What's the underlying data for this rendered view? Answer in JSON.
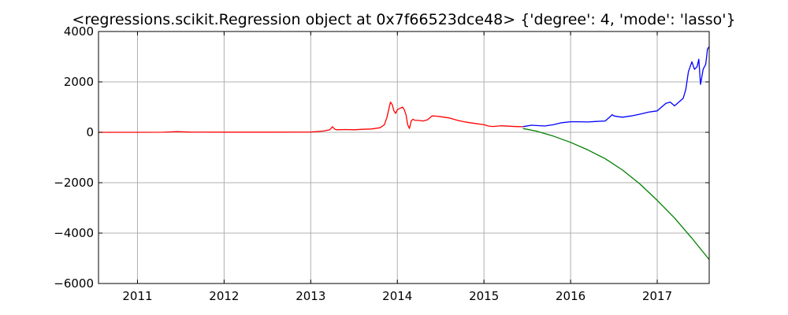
{
  "chart_data": {
    "type": "line",
    "title": "<regressions.scikit.Regression object at 0x7f66523dce48> {'degree': 4, 'mode': 'lasso'}",
    "xlabel": "",
    "ylabel": "",
    "xlim": [
      2010.55,
      2017.6
    ],
    "ylim": [
      -6000,
      4000
    ],
    "grid": true,
    "x_ticks": [
      2011,
      2012,
      2013,
      2014,
      2015,
      2016,
      2017
    ],
    "x_tick_labels": [
      "2011",
      "2012",
      "2013",
      "2014",
      "2015",
      "2016",
      "2017"
    ],
    "y_ticks": [
      4000,
      2000,
      0,
      -2000,
      -4000,
      -6000
    ],
    "y_tick_labels": [
      "4000",
      "2000",
      "0",
      "−2000",
      "−4000",
      "−6000"
    ],
    "series": [
      {
        "color": "#ff0000",
        "x": [
          2010.55,
          2011.0,
          2011.3,
          2011.45,
          2011.6,
          2012.0,
          2012.5,
          2013.0,
          2013.15,
          2013.22,
          2013.25,
          2013.28,
          2013.3,
          2013.4,
          2013.5,
          2013.6,
          2013.7,
          2013.8,
          2013.85,
          2013.88,
          2013.9,
          2013.92,
          2013.94,
          2013.96,
          2013.98,
          2014.0,
          2014.03,
          2014.06,
          2014.08,
          2014.1,
          2014.12,
          2014.14,
          2014.16,
          2014.18,
          2014.2,
          2014.25,
          2014.3,
          2014.35,
          2014.4,
          2014.45,
          2014.5,
          2014.6,
          2014.7,
          2014.8,
          2014.9,
          2015.0,
          2015.05,
          2015.1,
          2015.2,
          2015.3,
          2015.4,
          2015.45
        ],
        "y": [
          0,
          0,
          2,
          25,
          10,
          5,
          5,
          10,
          50,
          100,
          220,
          120,
          100,
          110,
          100,
          120,
          130,
          180,
          300,
          600,
          900,
          1200,
          1100,
          850,
          750,
          900,
          950,
          1000,
          900,
          700,
          300,
          150,
          450,
          520,
          480,
          470,
          450,
          500,
          650,
          640,
          620,
          570,
          470,
          400,
          350,
          300,
          250,
          230,
          260,
          240,
          225,
          225
        ]
      },
      {
        "color": "#0000ff",
        "x": [
          2015.45,
          2015.55,
          2015.7,
          2015.8,
          2015.9,
          2016.0,
          2016.1,
          2016.2,
          2016.3,
          2016.4,
          2016.45,
          2016.48,
          2016.5,
          2016.55,
          2016.6,
          2016.7,
          2016.8,
          2016.9,
          2017.0,
          2017.05,
          2017.1,
          2017.15,
          2017.2,
          2017.25,
          2017.3,
          2017.33,
          2017.36,
          2017.4,
          2017.43,
          2017.46,
          2017.48,
          2017.5,
          2017.53,
          2017.56,
          2017.58,
          2017.6
        ],
        "y": [
          225,
          280,
          250,
          300,
          380,
          420,
          420,
          410,
          430,
          450,
          600,
          700,
          650,
          620,
          600,
          650,
          720,
          800,
          850,
          1000,
          1150,
          1200,
          1050,
          1200,
          1350,
          1700,
          2400,
          2800,
          2500,
          2600,
          2900,
          1900,
          2500,
          2700,
          3300,
          3400
        ]
      },
      {
        "color": "#008000",
        "x": [
          2015.45,
          2015.6,
          2015.8,
          2016.0,
          2016.2,
          2016.4,
          2016.6,
          2016.8,
          2017.0,
          2017.2,
          2017.4,
          2017.6
        ],
        "y": [
          150,
          50,
          -150,
          -400,
          -700,
          -1050,
          -1500,
          -2050,
          -2700,
          -3400,
          -4200,
          -5050
        ]
      }
    ]
  }
}
